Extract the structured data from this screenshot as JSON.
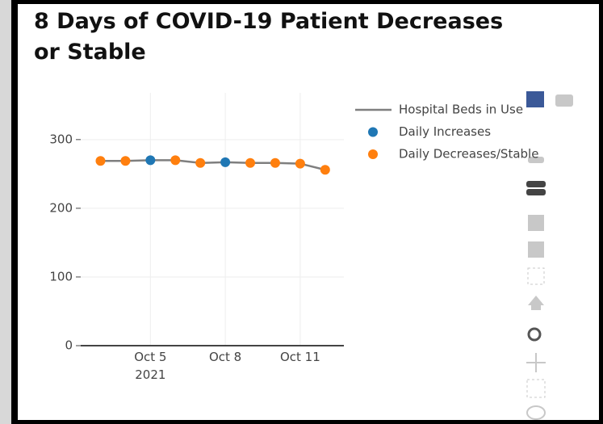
{
  "chart_data": {
    "type": "line",
    "title": "8 Days of COVID-19 Patient Decreases or Stable",
    "x": [
      "2021-10-03",
      "2021-10-04",
      "2021-10-05",
      "2021-10-06",
      "2021-10-07",
      "2021-10-08",
      "2021-10-09",
      "2021-10-10",
      "2021-10-11",
      "2021-10-12"
    ],
    "series": [
      {
        "name": "Hospital Beds in Use",
        "color": "#7f7f7f",
        "mode": "lines",
        "values": [
          269,
          269,
          270,
          270,
          266,
          267,
          266,
          266,
          265,
          256
        ]
      },
      {
        "name": "Daily Increases",
        "color": "#1f77b4",
        "mode": "markers",
        "values": [
          null,
          null,
          270,
          null,
          null,
          267,
          null,
          null,
          null,
          null
        ]
      },
      {
        "name": "Daily Decreases/Stable",
        "color": "#ff7f0e",
        "mode": "markers",
        "values": [
          269,
          269,
          null,
          270,
          266,
          null,
          266,
          266,
          265,
          256
        ]
      }
    ],
    "xlim": [
      "2021-10-02T05:00:00",
      "2021-10-12T18:00:00"
    ],
    "xticks": [
      {
        "value": "2021-10-05",
        "label": "Oct 5\n2021"
      },
      {
        "value": "2021-10-08",
        "label": "Oct 8"
      },
      {
        "value": "2021-10-11",
        "label": "Oct 11"
      }
    ],
    "ylim": [
      0,
      368
    ],
    "yticks": [
      0,
      100,
      200,
      300
    ],
    "grid": true,
    "legend": "top-right"
  }
}
